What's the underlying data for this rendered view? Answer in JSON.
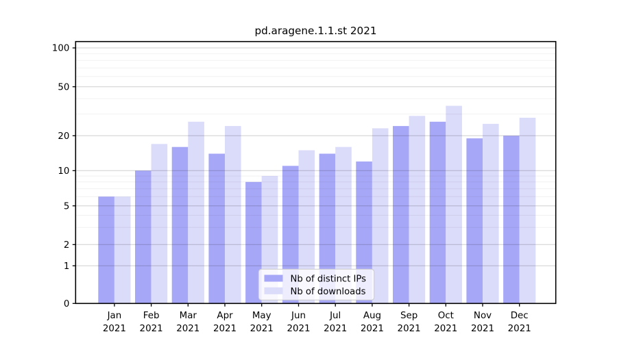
{
  "chart_data": {
    "type": "bar",
    "title": "pd.aragene.1.1.st 2021",
    "categories": [
      "Jan",
      "Feb",
      "Mar",
      "Apr",
      "May",
      "Jun",
      "Jul",
      "Aug",
      "Sep",
      "Oct",
      "Nov",
      "Dec"
    ],
    "year_label": "2021",
    "series": [
      {
        "name": "Nb of distinct IPs",
        "key": "distinct-ips",
        "color": "#a7a7f7",
        "values": [
          6,
          10,
          16,
          14,
          8,
          11,
          14,
          12,
          24,
          26,
          19,
          20
        ]
      },
      {
        "name": "Nb of downloads",
        "key": "downloads",
        "color": "#dbdbfa",
        "values": [
          6,
          17,
          26,
          24,
          9,
          15,
          16,
          23,
          29,
          35,
          25,
          28
        ]
      }
    ],
    "y_axis": {
      "scale": "asinh-log",
      "major_ticks": [
        0,
        1,
        2,
        5,
        10,
        20,
        50,
        100
      ],
      "major_tick_labels": [
        "0",
        "1",
        "2",
        "5",
        "10",
        "20",
        "50",
        "100"
      ],
      "minor_ticks": [
        3,
        4,
        6,
        7,
        8,
        9,
        30,
        40,
        60,
        70,
        80,
        90
      ],
      "range": [
        0,
        112
      ]
    },
    "legend": {
      "position": "lower-center-inside",
      "items": [
        "Nb of distinct IPs",
        "Nb of downloads"
      ]
    },
    "grid": true,
    "colors": {
      "grid_major": "rgba(0,0,0,0.19)",
      "grid_minor": "rgba(0,0,0,0.055)",
      "axis": "#000000",
      "legend_border": "#cccccc",
      "legend_background": "rgba(255,255,255,0.8)"
    }
  }
}
